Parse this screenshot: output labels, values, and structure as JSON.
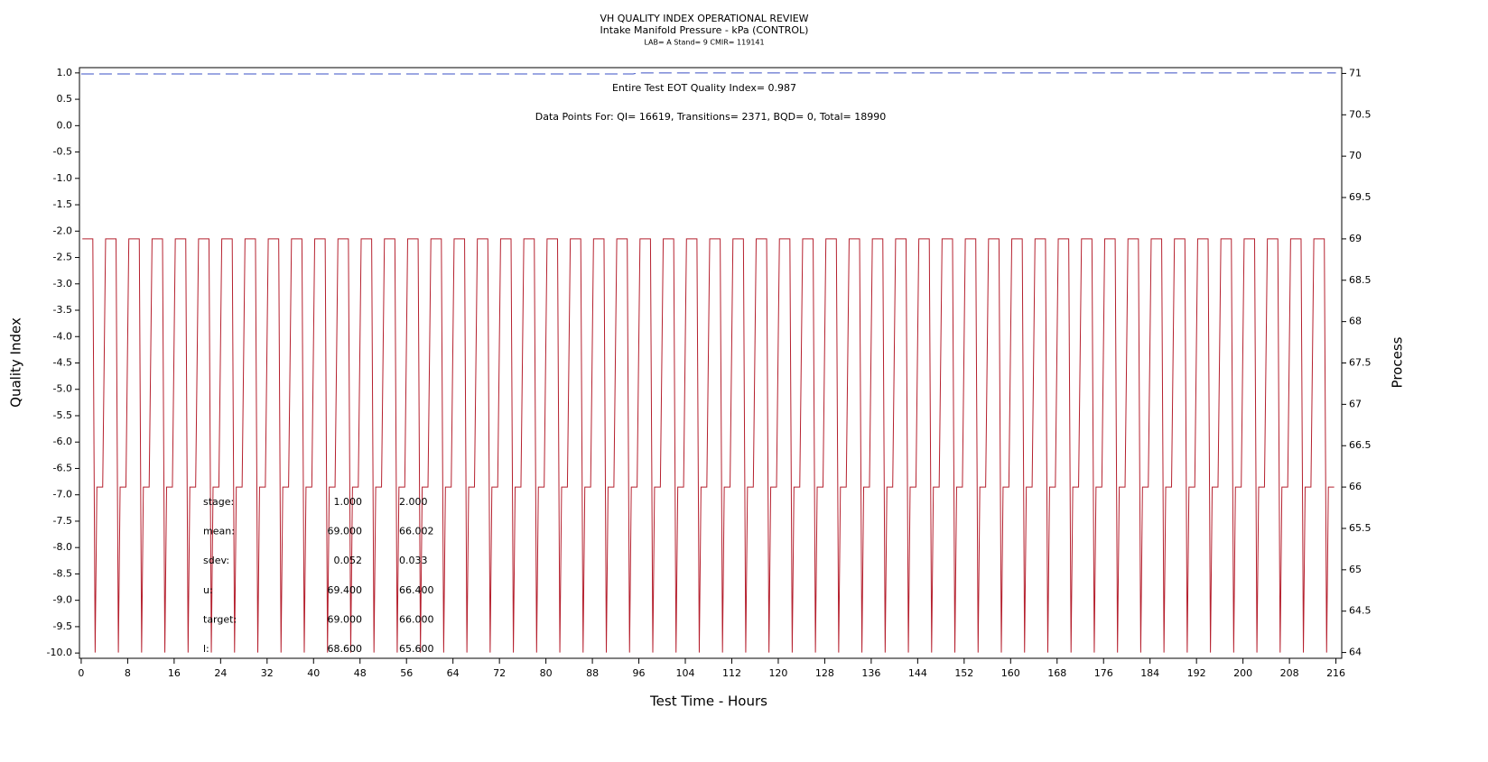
{
  "chart_data": {
    "type": "line",
    "title": "VH QUALITY INDEX OPERATIONAL REVIEW",
    "subtitle": "Intake Manifold Pressure - kPa (CONTROL)",
    "subtitle2": "LAB= A Stand= 9 CMIR= 119141",
    "xlabel": "Test Time - Hours",
    "ylabel": "Quality Index",
    "y2label": "Process",
    "annotations": [
      "Entire Test EOT Quality Index=   0.987",
      "Data Points For: QI= 16619, Transitions=  2371, BQD=    0, Total= 18990"
    ],
    "stats": [
      [
        "stage:",
        "1.000",
        "2.000"
      ],
      [
        "mean:",
        "69.000",
        "66.002"
      ],
      [
        "sdev:",
        "0.052",
        "0.033"
      ],
      [
        "u:",
        "69.400",
        "66.400"
      ],
      [
        "target:",
        "69.000",
        "66.000"
      ],
      [
        "l:",
        "68.600",
        "65.600"
      ]
    ],
    "xlim": [
      -0.3,
      217
    ],
    "xticks": [
      0,
      8,
      16,
      24,
      32,
      40,
      48,
      56,
      64,
      72,
      80,
      88,
      96,
      104,
      112,
      120,
      128,
      136,
      144,
      152,
      160,
      168,
      176,
      184,
      192,
      200,
      208,
      216
    ],
    "ylim": [
      -10.1,
      1.1
    ],
    "yticks": [
      {
        "value": -10,
        "label": "-10.0"
      },
      -9.5,
      {
        "value": -9,
        "label": "-9.0"
      },
      -8.5,
      {
        "value": -8,
        "label": "-8.0"
      },
      -7.5,
      {
        "value": -7,
        "label": "-7.0"
      },
      -6.5,
      {
        "value": -6,
        "label": "-6.0"
      },
      -5.5,
      {
        "value": -5,
        "label": "-5.0"
      },
      -4.5,
      {
        "value": -4,
        "label": "-4.0"
      },
      -3.5,
      {
        "value": -3,
        "label": "-3.0"
      },
      -2.5,
      {
        "value": -2,
        "label": "-2.0"
      },
      -1.5,
      {
        "value": -1,
        "label": "-1.0"
      },
      -0.5,
      {
        "value": 0,
        "label": "0.0"
      },
      0.5,
      {
        "value": 1,
        "label": "1.0"
      }
    ],
    "y2lim": [
      63.93,
      71.07
    ],
    "y2ticks": [
      64,
      64.5,
      65,
      65.5,
      66,
      66.5,
      67,
      67.5,
      68,
      68.5,
      69,
      69.5,
      70,
      70.5,
      71
    ],
    "series": [
      {
        "color": "#3a4fc4",
        "dashed": true,
        "axis": "y",
        "x": [
          0,
          95,
          96,
          216
        ],
        "values": [
          0.98,
          0.98,
          1.0,
          1.0
        ]
      },
      {
        "color": "#b5202e",
        "dashed": false,
        "axis": "y2",
        "x": [
          0.2,
          2,
          2.4,
          2.7,
          3.7,
          4.2,
          6,
          6.4,
          6.7,
          7.7,
          8.2,
          10,
          10.4,
          10.7,
          11.7,
          12.2,
          14,
          14.4,
          14.7,
          15.7,
          16.2,
          18,
          18.4,
          18.7,
          19.7,
          20.2,
          22,
          22.4,
          22.7,
          23.7,
          24.2,
          26,
          26.4,
          26.7,
          27.7,
          28.2,
          30,
          30.4,
          30.7,
          31.7,
          32.2,
          34,
          34.4,
          34.7,
          35.7,
          36.2,
          38,
          38.4,
          38.7,
          39.7,
          40.2,
          42,
          42.4,
          42.7,
          43.7,
          44.2,
          46,
          46.4,
          46.7,
          47.7,
          48.2,
          50,
          50.4,
          50.7,
          51.7,
          52.2,
          54,
          54.4,
          54.7,
          55.7,
          56.2,
          58,
          58.4,
          58.7,
          59.7,
          60.2,
          62,
          62.4,
          62.7,
          63.7,
          64.2,
          66,
          66.4,
          66.7,
          67.7,
          68.2,
          70,
          70.4,
          70.7,
          71.7,
          72.2,
          74,
          74.4,
          74.7,
          75.7,
          76.2,
          78,
          78.4,
          78.7,
          79.7,
          80.2,
          82,
          82.4,
          82.7,
          83.7,
          84.2,
          86,
          86.4,
          86.7,
          87.7,
          88.2,
          90,
          90.4,
          90.7,
          91.7,
          92.2,
          94,
          94.4,
          94.7,
          95.7,
          96.2,
          98,
          98.4,
          98.7,
          99.7,
          100.2,
          102,
          102.4,
          102.7,
          103.7,
          104.2,
          106,
          106.4,
          106.7,
          107.7,
          108.2,
          110,
          110.4,
          110.7,
          111.7,
          112.2,
          114,
          114.4,
          114.7,
          115.7,
          116.2,
          118,
          118.4,
          118.7,
          119.7,
          120.2,
          122,
          122.4,
          122.7,
          123.7,
          124.2,
          126,
          126.4,
          126.7,
          127.7,
          128.2,
          130,
          130.4,
          130.7,
          131.7,
          132.2,
          134,
          134.4,
          134.7,
          135.7,
          136.2,
          138,
          138.4,
          138.7,
          139.7,
          140.2,
          142,
          142.4,
          142.7,
          143.7,
          144.2,
          146,
          146.4,
          146.7,
          147.7,
          148.2,
          150,
          150.4,
          150.7,
          151.7,
          152.2,
          154,
          154.4,
          154.7,
          155.7,
          156.2,
          158,
          158.4,
          158.7,
          159.7,
          160.2,
          162,
          162.4,
          162.7,
          163.7,
          164.2,
          166,
          166.4,
          166.7,
          167.7,
          168.2,
          170,
          170.4,
          170.7,
          171.7,
          172.2,
          174,
          174.4,
          174.7,
          175.7,
          176.2,
          178,
          178.4,
          178.7,
          179.7,
          180.2,
          182,
          182.4,
          182.7,
          183.7,
          184.2,
          186,
          186.4,
          186.7,
          187.7,
          188.2,
          190,
          190.4,
          190.7,
          191.7,
          192.2,
          194,
          194.4,
          194.7,
          195.7,
          196.2,
          198,
          198.4,
          198.7,
          199.7,
          200.2,
          202,
          202.4,
          202.7,
          203.7,
          204.2,
          206,
          206.4,
          206.7,
          207.7,
          208.2,
          210,
          210.4,
          210.7,
          211.7,
          212.2,
          214,
          214.4,
          214.7,
          215.7
        ],
        "values": [
          69,
          69,
          64,
          66,
          66,
          69,
          69,
          64,
          66,
          66,
          69,
          69,
          64,
          66,
          66,
          69,
          69,
          64,
          66,
          66,
          69,
          69,
          64,
          66,
          66,
          69,
          69,
          64,
          66,
          66,
          69,
          69,
          64,
          66,
          66,
          69,
          69,
          64,
          66,
          66,
          69,
          69,
          64,
          66,
          66,
          69,
          69,
          64,
          66,
          66,
          69,
          69,
          64,
          66,
          66,
          69,
          69,
          64,
          66,
          66,
          69,
          69,
          64,
          66,
          66,
          69,
          69,
          64,
          66,
          66,
          69,
          69,
          64,
          66,
          66,
          69,
          69,
          64,
          66,
          66,
          69,
          69,
          64,
          66,
          66,
          69,
          69,
          64,
          66,
          66,
          69,
          69,
          64,
          66,
          66,
          69,
          69,
          64,
          66,
          66,
          69,
          69,
          64,
          66,
          66,
          69,
          69,
          64,
          66,
          66,
          69,
          69,
          64,
          66,
          66,
          69,
          69,
          64,
          66,
          66,
          69,
          69,
          64,
          66,
          66,
          69,
          69,
          64,
          66,
          66,
          69,
          69,
          64,
          66,
          66,
          69,
          69,
          64,
          66,
          66,
          69,
          69,
          64,
          66,
          66,
          69,
          69,
          64,
          66,
          66,
          69,
          69,
          64,
          66,
          66,
          69,
          69,
          64,
          66,
          66,
          69,
          69,
          64,
          66,
          66,
          69,
          69,
          64,
          66,
          66,
          69,
          69,
          64,
          66,
          66,
          69,
          69,
          64,
          66,
          66,
          69,
          69,
          64,
          66,
          66,
          69,
          69,
          64,
          66,
          66,
          69,
          69,
          64,
          66,
          66,
          69,
          69,
          64,
          66,
          66,
          69,
          69,
          64,
          66,
          66,
          69,
          69,
          64,
          66,
          66,
          69,
          69,
          64,
          66,
          66,
          69,
          69,
          64,
          66,
          66,
          69,
          69,
          64,
          66,
          66,
          69,
          69,
          64,
          66,
          66,
          69,
          69,
          64,
          66,
          66,
          69,
          69,
          64,
          66,
          66,
          69,
          69,
          64,
          66,
          66,
          69,
          69,
          64,
          66,
          66,
          69,
          69,
          64,
          66,
          66,
          69,
          69,
          64,
          66,
          66,
          69,
          69,
          64,
          66,
          66,
          69,
          69,
          64,
          66,
          66
        ]
      }
    ]
  }
}
